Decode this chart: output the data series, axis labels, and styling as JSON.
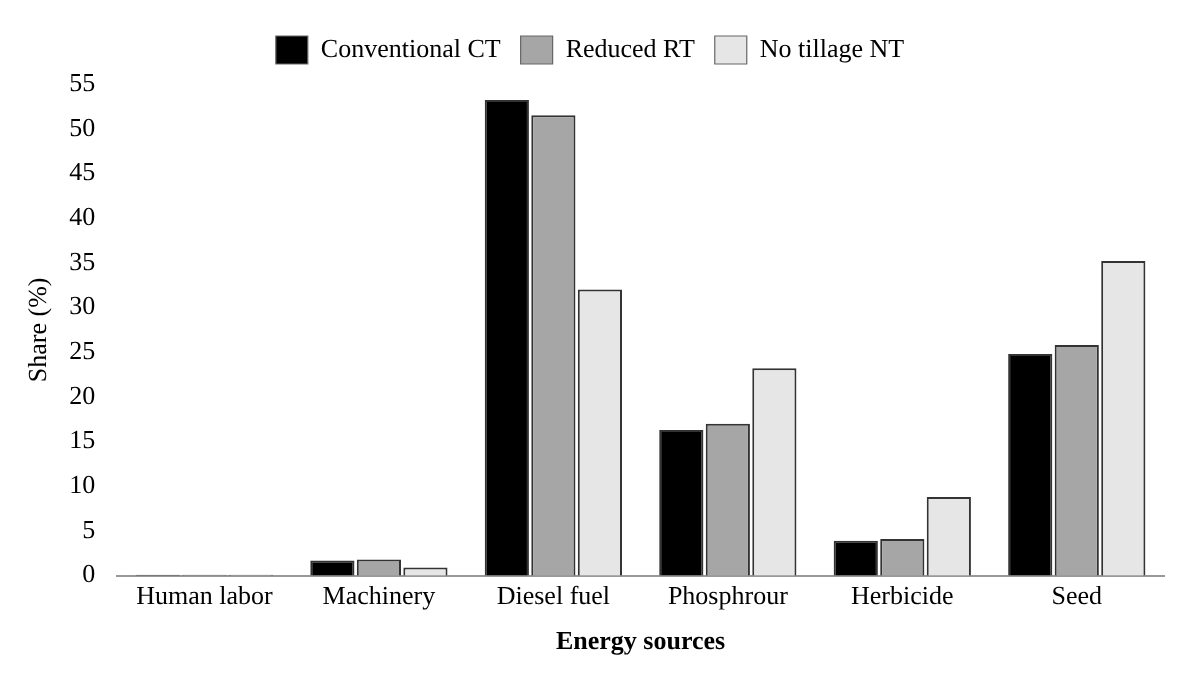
{
  "chart_data": {
    "type": "bar",
    "xlabel": "Energy sources",
    "ylabel": "Share (%)",
    "categories": [
      "Human labor",
      "Machinery",
      "Diesel fuel",
      "Phosphrour",
      "Herbicide",
      "Seed"
    ],
    "series": [
      {
        "name": "Conventional CT",
        "color": "#000000",
        "values": [
          0.1,
          1.7,
          53.2,
          16.3,
          3.9,
          24.8
        ]
      },
      {
        "name": "Reduced RT",
        "color": "#a6a6a6",
        "values": [
          0.1,
          1.8,
          51.5,
          17,
          4.1,
          25.8
        ]
      },
      {
        "name": "No tillage NT",
        "color": "#e7e6e6",
        "values": [
          0.1,
          0.9,
          32,
          23.2,
          8.8,
          35.2
        ]
      }
    ],
    "ylim": [
      0,
      55
    ],
    "yticks": [
      0,
      5,
      10,
      15,
      20,
      25,
      30,
      35,
      40,
      45,
      50,
      55
    ],
    "grid": false,
    "legend": "top"
  }
}
